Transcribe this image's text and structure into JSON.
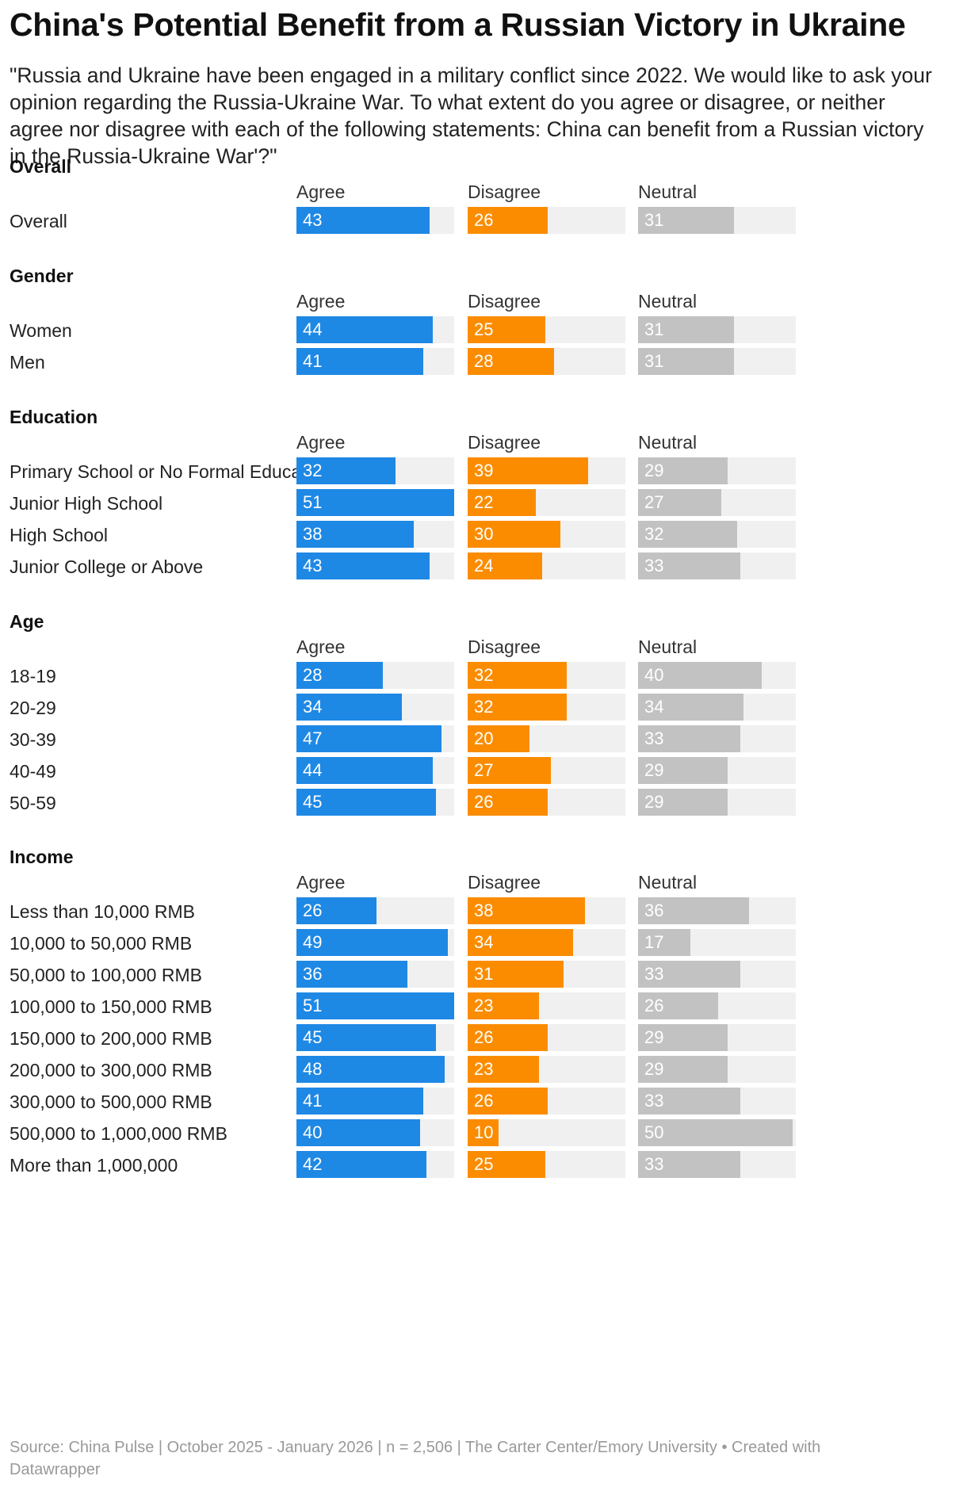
{
  "title": "China's Potential Benefit from a Russian Victory in Ukraine",
  "subtitle": "\"Russia and Ukraine have been engaged in a military conflict since 2022. We would like to ask your opinion regarding the Russia-Ukraine War. To what extent do you agree or disagree, or neither agree nor disagree with each of the following statements: China can benefit from a Russian victory in the Russia-Ukraine War'?\"",
  "footer": "Source: China Pulse | October 2025 - January 2026 | n = 2,506 | The Carter Center/Emory University • Created with Datawrapper",
  "colors": {
    "agree": "#1e88e5",
    "disagree": "#fb8c00",
    "neutral": "#c2c2c2",
    "track": "#f0f0f0"
  },
  "chart_data": {
    "type": "bar",
    "columns": [
      "Agree",
      "Disagree",
      "Neutral"
    ],
    "xlim": [
      0,
      51
    ],
    "groups": [
      {
        "name": "Overall",
        "rows": [
          {
            "label": "Overall",
            "values": [
              43,
              26,
              31
            ]
          }
        ]
      },
      {
        "name": "Gender",
        "rows": [
          {
            "label": "Women",
            "values": [
              44,
              25,
              31
            ]
          },
          {
            "label": "Men",
            "values": [
              41,
              28,
              31
            ]
          }
        ]
      },
      {
        "name": "Education",
        "rows": [
          {
            "label": "Primary School or No Formal Education",
            "values": [
              32,
              39,
              29
            ]
          },
          {
            "label": "Junior High School",
            "values": [
              51,
              22,
              27
            ]
          },
          {
            "label": "High School",
            "values": [
              38,
              30,
              32
            ]
          },
          {
            "label": "Junior College or Above",
            "values": [
              43,
              24,
              33
            ]
          }
        ]
      },
      {
        "name": "Age",
        "rows": [
          {
            "label": "18-19",
            "values": [
              28,
              32,
              40
            ]
          },
          {
            "label": "20-29",
            "values": [
              34,
              32,
              34
            ]
          },
          {
            "label": "30-39",
            "values": [
              47,
              20,
              33
            ]
          },
          {
            "label": "40-49",
            "values": [
              44,
              27,
              29
            ]
          },
          {
            "label": "50-59",
            "values": [
              45,
              26,
              29
            ]
          }
        ]
      },
      {
        "name": "Income",
        "rows": [
          {
            "label": "Less than 10,000 RMB",
            "values": [
              26,
              38,
              36
            ]
          },
          {
            "label": "10,000 to 50,000 RMB",
            "values": [
              49,
              34,
              17
            ]
          },
          {
            "label": "50,000 to 100,000 RMB",
            "values": [
              36,
              31,
              33
            ]
          },
          {
            "label": "100,000 to 150,000 RMB",
            "values": [
              51,
              23,
              26
            ]
          },
          {
            "label": "150,000 to 200,000 RMB",
            "values": [
              45,
              26,
              29
            ]
          },
          {
            "label": "200,000 to 300,000 RMB",
            "values": [
              48,
              23,
              29
            ]
          },
          {
            "label": "300,000 to 500,000 RMB",
            "values": [
              41,
              26,
              33
            ]
          },
          {
            "label": "500,000 to 1,000,000 RMB",
            "values": [
              40,
              10,
              50
            ]
          },
          {
            "label": "More than 1,000,000",
            "values": [
              42,
              25,
              33
            ]
          }
        ]
      }
    ]
  }
}
